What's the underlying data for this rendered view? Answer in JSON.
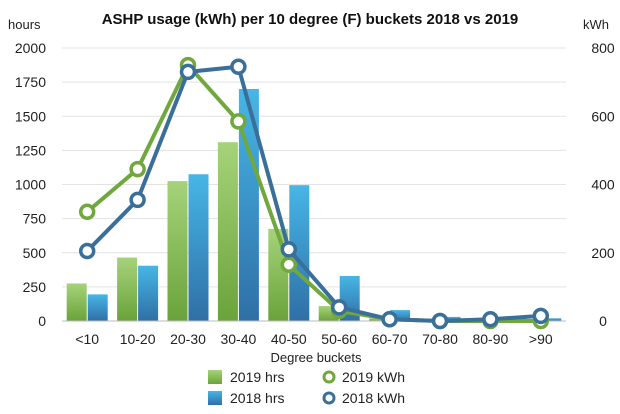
{
  "chart_data": {
    "type": "bar",
    "title": "ASHP usage (kWh) per 10 degree (F) buckets 2018 vs 2019",
    "xlabel": "Degree buckets",
    "ylabel_left": "hours",
    "ylabel_right": "kWh",
    "ylim_left": [
      0,
      2000
    ],
    "ylim_right": [
      0,
      800
    ],
    "yticks_left": [
      0,
      250,
      500,
      750,
      1000,
      1250,
      1500,
      1750,
      2000
    ],
    "yticks_right": [
      0,
      200,
      400,
      600,
      800
    ],
    "categories": [
      "<10",
      "10-20",
      "20-30",
      "30-40",
      "40-50",
      "50-60",
      "60-70",
      "70-80",
      "80-90",
      ">90"
    ],
    "grid": true,
    "legend_position": "bottom",
    "series": [
      {
        "name": "2019 hrs",
        "kind": "bar",
        "axis": "left",
        "color": "#7fb24a",
        "values": [
          275,
          465,
          1025,
          1310,
          675,
          110,
          20,
          5,
          5,
          5
        ]
      },
      {
        "name": "2018 hrs",
        "kind": "bar",
        "axis": "left",
        "color": "#2f8bc4",
        "values": [
          195,
          405,
          1075,
          1700,
          995,
          330,
          80,
          30,
          25,
          20
        ]
      },
      {
        "name": "2019 kWh",
        "kind": "line",
        "axis": "right",
        "color": "#70a83e",
        "values": [
          320,
          445,
          750,
          585,
          165,
          30,
          5,
          0,
          0,
          0
        ]
      },
      {
        "name": "2018 kWh",
        "kind": "line",
        "axis": "right",
        "color": "#3a6f9a",
        "values": [
          205,
          355,
          730,
          745,
          210,
          40,
          5,
          0,
          5,
          15
        ]
      }
    ]
  }
}
